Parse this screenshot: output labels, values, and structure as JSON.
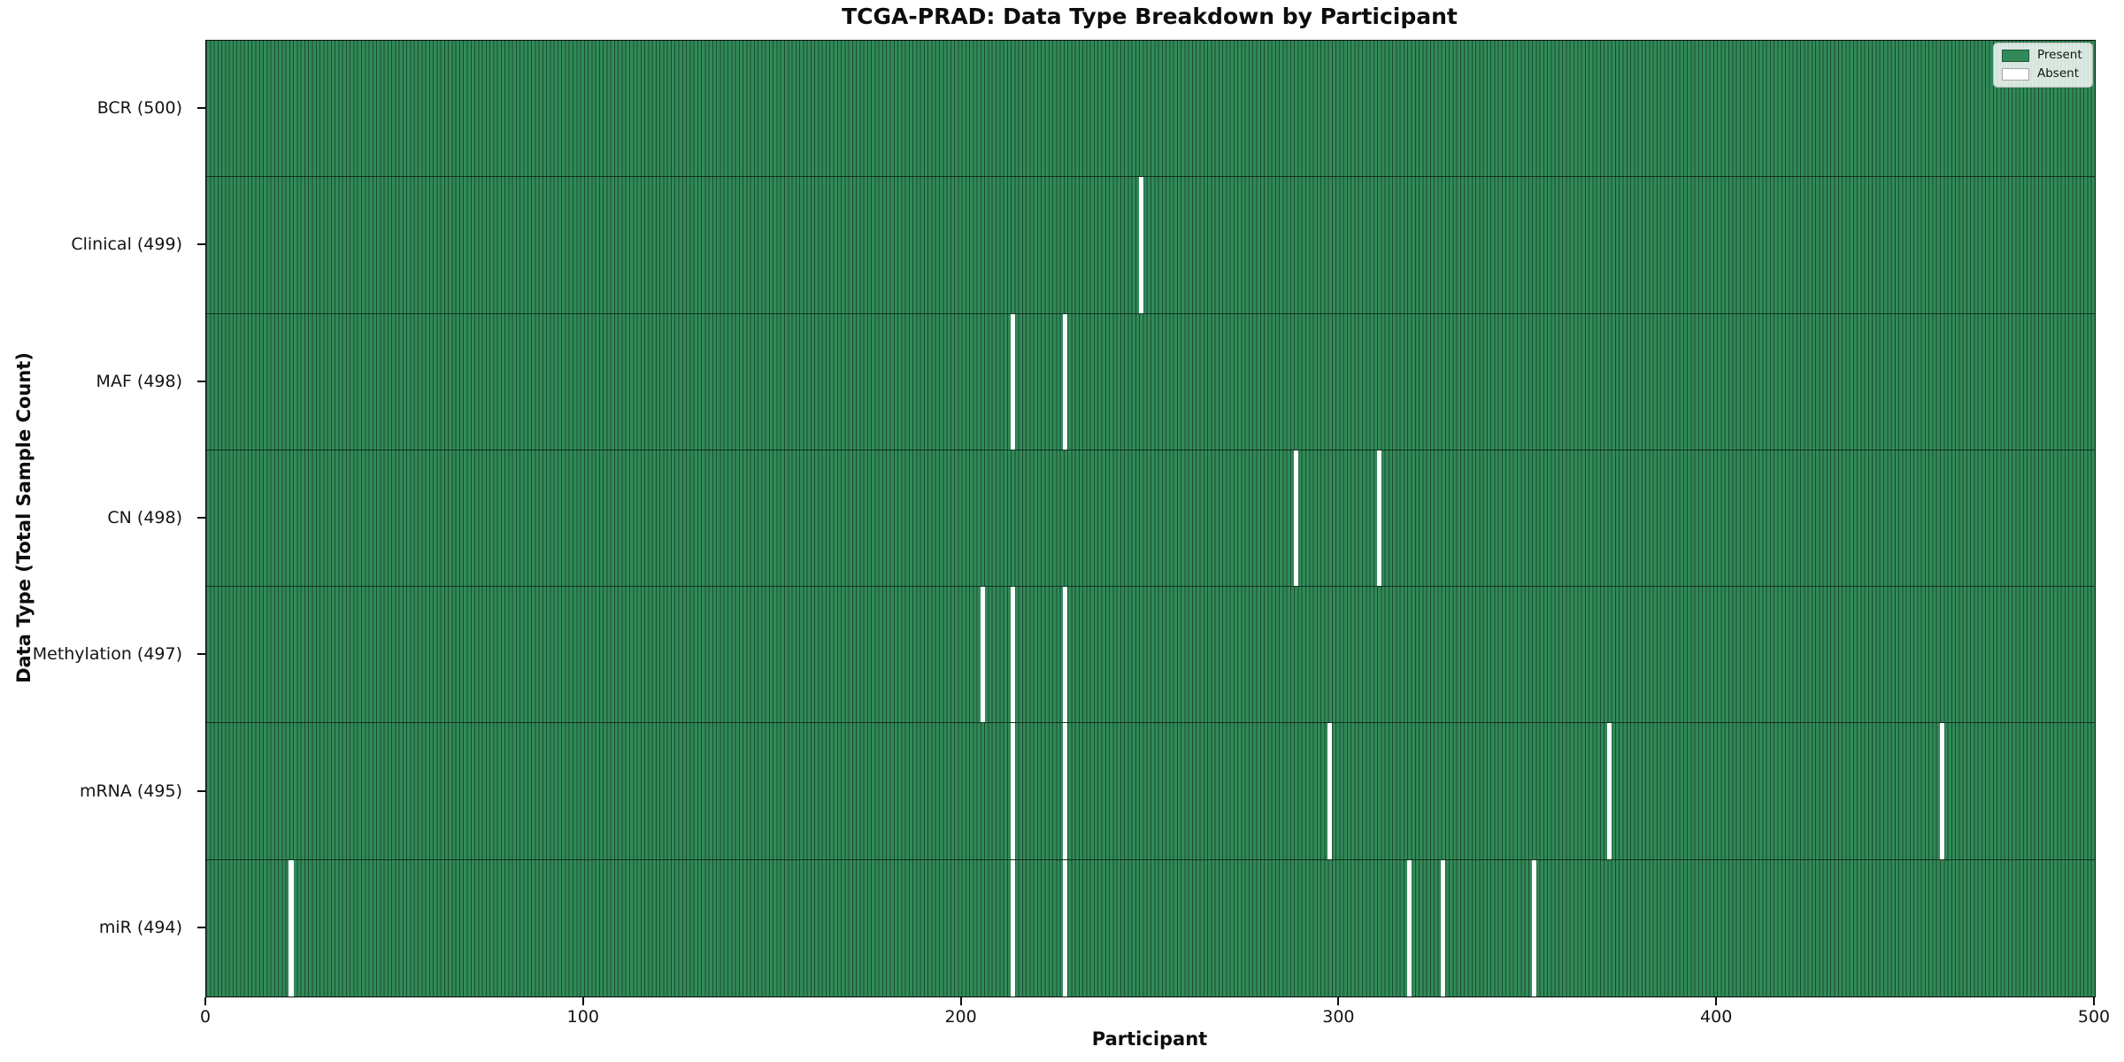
{
  "chart_data": {
    "type": "heatmap",
    "title": "TCGA-PRAD: Data Type Breakdown by Participant",
    "xlabel": "Participant",
    "ylabel": "Data Type (Total Sample Count)",
    "xlim": [
      0,
      500
    ],
    "x_ticks": [
      0,
      100,
      200,
      300,
      400,
      500
    ],
    "n_participants": 500,
    "grid": false,
    "legend": {
      "position": "upper right",
      "entries": [
        {
          "label": "Present",
          "color": "#318a58"
        },
        {
          "label": "Absent",
          "color": "#ffffff"
        }
      ]
    },
    "colors": {
      "present": "#318a58",
      "absent": "#ffffff",
      "cell_edge": "rgba(0,0,0,0.45)",
      "row_divider": "rgba(0,0,0,0.60)",
      "spine": "#0d0d0d"
    },
    "rows": [
      {
        "label": "BCR (500)",
        "present_count": 500,
        "absent_participants": []
      },
      {
        "label": "Clinical (499)",
        "present_count": 499,
        "absent_participants": [
          247
        ]
      },
      {
        "label": "MAF (498)",
        "present_count": 498,
        "absent_participants": [
          213,
          227
        ]
      },
      {
        "label": "CN (498)",
        "present_count": 498,
        "absent_participants": [
          288,
          310
        ]
      },
      {
        "label": "Methylation (497)",
        "present_count": 497,
        "absent_participants": [
          205,
          213,
          227
        ]
      },
      {
        "label": "mRNA (495)",
        "present_count": 495,
        "absent_participants": [
          213,
          227,
          297,
          371,
          459
        ]
      },
      {
        "label": "miR (494)",
        "present_count": 494,
        "absent_participants": [
          22,
          213,
          227,
          318,
          327,
          351
        ]
      }
    ]
  }
}
